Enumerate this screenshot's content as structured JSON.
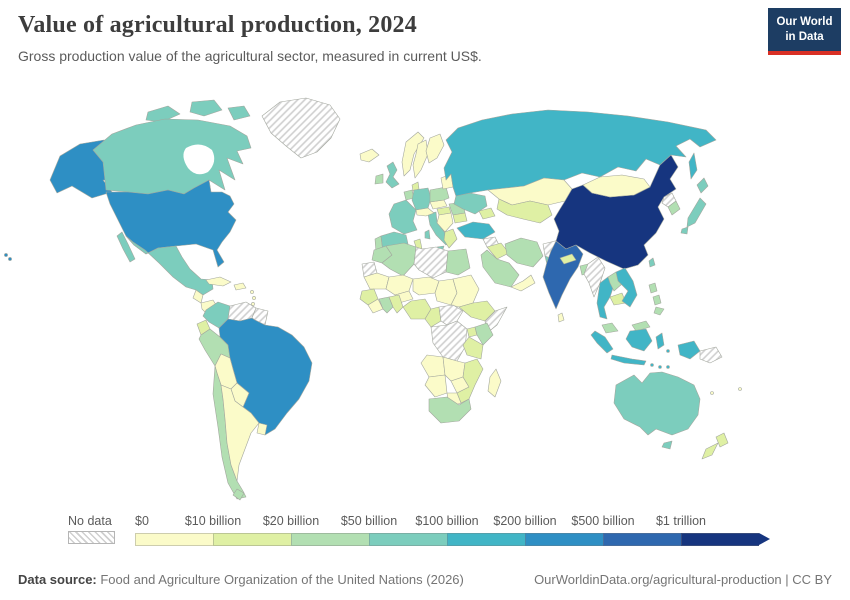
{
  "header": {
    "title": "Value of agricultural production, 2024",
    "subtitle": "Gross production value of the agricultural sector, measured in current US$."
  },
  "logo": {
    "line1": "Our World",
    "line2": "in Data",
    "bg_color": "#1d3d63",
    "bar_color": "#d93025"
  },
  "footer": {
    "source_label": "Data source:",
    "source_text": " Food and Agriculture Organization of the United Nations (2026)",
    "link_text": "OurWorldinData.org/agricultural-production | CC BY"
  },
  "chart_data": {
    "type": "choropleth",
    "title": "Value of agricultural production, 2024",
    "unit": "current US$",
    "legend_no_data_label": "No data",
    "bins": [
      {
        "threshold_label": "$0",
        "color": "#fbfbc9"
      },
      {
        "threshold_label": "$10 billion",
        "color": "#dff0a4"
      },
      {
        "threshold_label": "$20 billion",
        "color": "#b2dfb2"
      },
      {
        "threshold_label": "$50 billion",
        "color": "#7ccdbd"
      },
      {
        "threshold_label": "$100 billion",
        "color": "#41b5c6"
      },
      {
        "threshold_label": "$200 billion",
        "color": "#2e8fc4"
      },
      {
        "threshold_label": "$500 billion",
        "color": "#2e68af"
      },
      {
        "threshold_label": "$1 trillion",
        "color": "#16357f"
      }
    ],
    "no_data_bin": -1,
    "regions": {
      "alaska": 5,
      "usa": 5,
      "canada": 3,
      "canada-arctic-1": 3,
      "canada-arctic-2": 3,
      "canada-arctic-3": 3,
      "canada-arctic-4": 3,
      "greenland": -1,
      "mexico": 3,
      "mexico-baja": 3,
      "guatemala": 0,
      "honduras-nicaragua": 0,
      "costarica-panama": 2,
      "cuba": 0,
      "hispaniola": 0,
      "lesser-antilles": 0,
      "hawaii": 5,
      "colombia": 3,
      "venezuela": -1,
      "guyanas": -1,
      "ecuador": 1,
      "peru": 2,
      "brazil": 5,
      "bolivia": 0,
      "paraguay": 0,
      "chile": 2,
      "argentina": 0,
      "tierra-del-fuego": 2,
      "uruguay": 0,
      "iceland": 0,
      "norway": 0,
      "sweden": 0,
      "finland": 0,
      "denmark": 1,
      "uk": 3,
      "ireland": 2,
      "lowlands": 2,
      "germany": 3,
      "france": 3,
      "portugal": 2,
      "spain": 3,
      "italy": 3,
      "sicily": 3,
      "sardinia": 3,
      "switzerland-austria": 0,
      "czech-slovakia": 0,
      "poland": 2,
      "hungary": 1,
      "balkans": 0,
      "greece": 1,
      "romania": 2,
      "bulgaria": 1,
      "baltics": 0,
      "belarus": 0,
      "ukraine": 3,
      "russia": 4,
      "sakhalin": 4,
      "kazakhstan": 0,
      "central-asia": 1,
      "caucasus": 1,
      "turkey": 4,
      "syria": -1,
      "iraq": 1,
      "iran": 2,
      "afghanistan": -1,
      "pakistan": 3,
      "saudi-arabia": 2,
      "yemen-oman": 0,
      "mongolia": 0,
      "china": 7,
      "taiwan": 3,
      "north-korea": -1,
      "south-korea": 2,
      "japan-hokkaido": 3,
      "japan-honshu": 3,
      "japan-kyushu": 3,
      "india": 6,
      "sri-lanka": 0,
      "nepal": 1,
      "bangladesh": 2,
      "myanmar": -1,
      "thailand": 4,
      "laos": 2,
      "cambodia": 1,
      "vietnam": 4,
      "malaysia-peninsula": 2,
      "malaysia-borneo": 2,
      "philippines-1": 2,
      "philippines-2": 2,
      "philippines-3": 2,
      "indonesia-sumatra": 4,
      "indonesia-java": 4,
      "indonesia-kalimantan": 4,
      "indonesia-sulawesi": 4,
      "indonesia-lesser-sunda": 4,
      "indonesia-maluku": 4,
      "indonesia-papua": 4,
      "papua-new-guinea": -1,
      "morocco": 2,
      "western-sahara": -1,
      "algeria": 2,
      "tunisia": 1,
      "libya": -1,
      "egypt": 2,
      "mauritania": 0,
      "mali": 0,
      "burkina-faso": 0,
      "niger": 0,
      "chad": 0,
      "sudan": 0,
      "ethiopia": 1,
      "somalia": -1,
      "senegal-guinea": 1,
      "sierraleone-liberia": 0,
      "cote-divoire": 2,
      "ghana": 1,
      "nigeria": 1,
      "cameroon": 1,
      "central-african-republic": -1,
      "drc": -1,
      "uganda": 1,
      "kenya": 2,
      "tanzania": 1,
      "angola": 0,
      "zambia": 0,
      "zimbabwe": 0,
      "mozambique": 1,
      "namibia": 0,
      "botswana": 0,
      "south-africa": 2,
      "madagascar": 0,
      "australia": 3,
      "tasmania": 3,
      "new-zealand-north": 1,
      "new-zealand-south": 1,
      "new-caledonia": 0,
      "fiji": 0
    }
  }
}
